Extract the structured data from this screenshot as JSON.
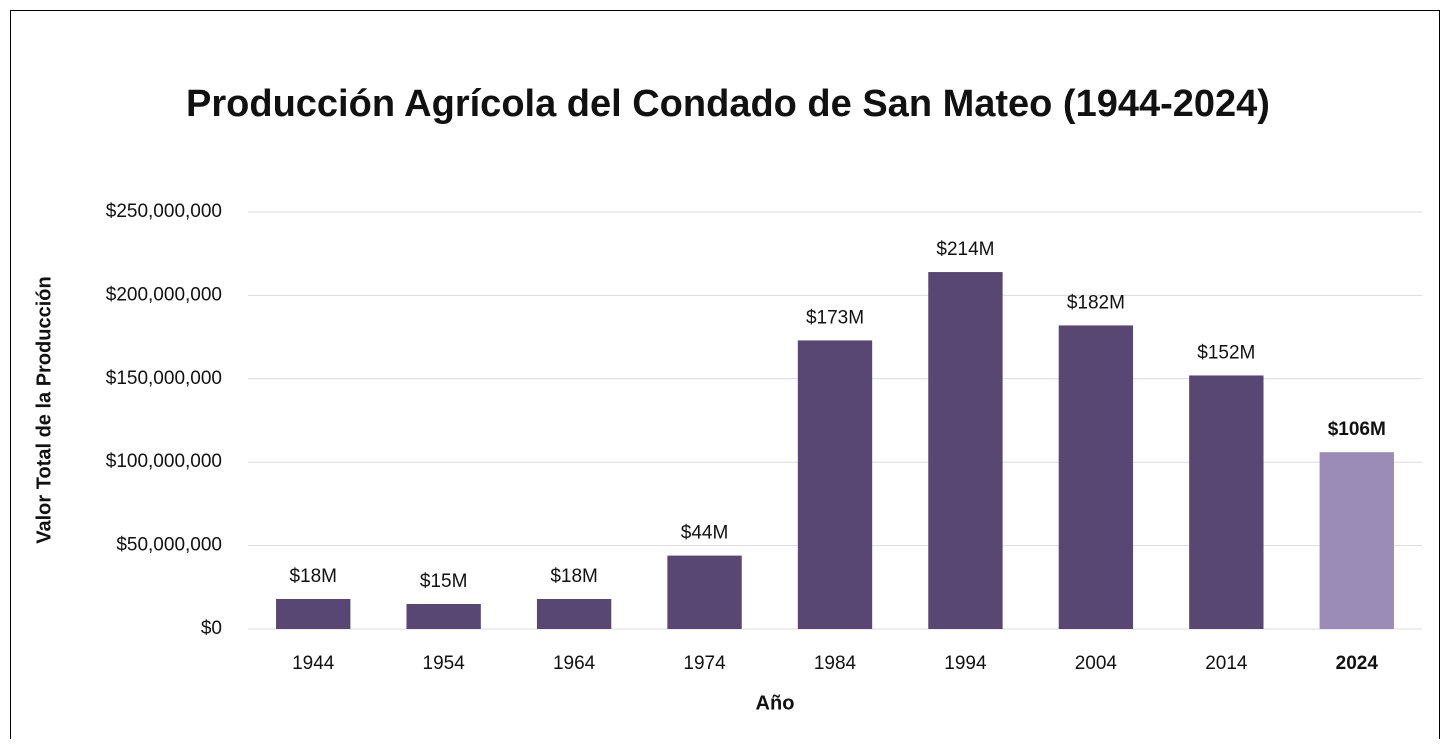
{
  "chart_data": {
    "type": "bar",
    "title": "Producción Agrícola del Condado de San Mateo (1944-2024)",
    "x_label": "Año",
    "y_label": "Valor Total de la Producción",
    "categories": [
      "1944",
      "1954",
      "1964",
      "1974",
      "1984",
      "1994",
      "2004",
      "2014",
      "2024"
    ],
    "values": [
      18000000,
      15000000,
      18000000,
      44000000,
      173000000,
      214000000,
      182000000,
      152000000,
      106000000
    ],
    "value_labels": [
      "$18M",
      "$15M",
      "$18M",
      "$44M",
      "$173M",
      "$214M",
      "$182M",
      "$152M",
      "$106M"
    ],
    "colors": [
      "#584673",
      "#584673",
      "#584673",
      "#584673",
      "#584673",
      "#584673",
      "#584673",
      "#584673",
      "#9b8bb7"
    ],
    "highlight_color": "#9b8bb7",
    "ylim": [
      0,
      250000000
    ],
    "yticks": [
      {
        "value": 0,
        "label": "$0"
      },
      {
        "value": 50000000,
        "label": "$50,000,000"
      },
      {
        "value": 100000000,
        "label": "$100,000,000"
      },
      {
        "value": 150000000,
        "label": "$150,000,000"
      },
      {
        "value": 200000000,
        "label": "$200,000,000"
      },
      {
        "value": 250000000,
        "label": "$250,000,000"
      }
    ],
    "grid": true
  }
}
